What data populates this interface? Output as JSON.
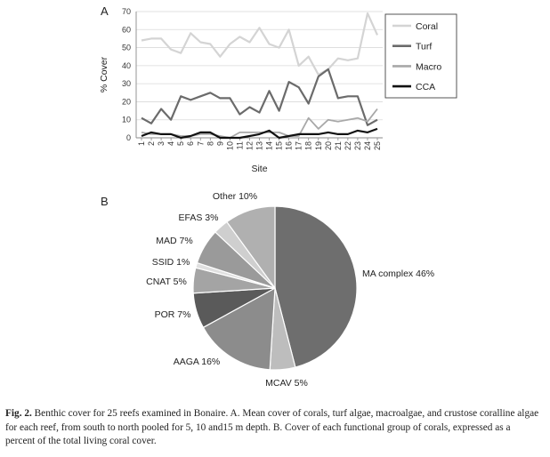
{
  "caption": {
    "label": "Fig. 2.",
    "text": "Benthic cover for 25 reefs examined in Bonaire. A. Mean cover of corals, turf algae, macroalgae, and crustose coralline algae for each reef, from south to north pooled for 5, 10 and15 m depth. B. Cover of each functional group of corals, expressed as a percent of the total living coral cover."
  },
  "chart_data": [
    {
      "panel": "A",
      "type": "line",
      "xlabel": "Site",
      "ylabel": "% Cover",
      "ylim": [
        0,
        70
      ],
      "yticks": [
        0,
        10,
        20,
        30,
        40,
        50,
        60,
        70
      ],
      "grid": true,
      "legend": "right",
      "x": [
        1,
        2,
        3,
        4,
        5,
        6,
        7,
        8,
        9,
        10,
        11,
        12,
        13,
        14,
        15,
        16,
        17,
        18,
        19,
        20,
        21,
        22,
        23,
        24,
        25
      ],
      "series": [
        {
          "name": "Coral",
          "color": "#d4d4d4",
          "values": [
            54,
            55,
            55,
            49,
            47,
            58,
            53,
            52,
            45,
            52,
            56,
            53,
            61,
            52,
            50,
            60,
            40,
            45,
            35,
            38,
            44,
            43,
            44,
            69,
            57
          ]
        },
        {
          "name": "Turf",
          "color": "#6b6b6b",
          "values": [
            11,
            8,
            16,
            10,
            23,
            21,
            23,
            25,
            22,
            22,
            13,
            17,
            14,
            26,
            15,
            31,
            28,
            19,
            34,
            38,
            22,
            23,
            23,
            7,
            10
          ]
        },
        {
          "name": "Macro",
          "color": "#a8a8a8",
          "values": [
            3,
            2,
            2,
            2,
            1,
            1,
            2,
            2,
            1,
            0,
            3,
            3,
            3,
            3,
            3,
            1,
            1,
            11,
            5,
            10,
            9,
            10,
            11,
            9,
            16
          ]
        },
        {
          "name": "CCA",
          "color": "#111111",
          "values": [
            1,
            3,
            2,
            2,
            0,
            1,
            3,
            3,
            0,
            0,
            0,
            1,
            2,
            4,
            0,
            1,
            2,
            2,
            2,
            3,
            2,
            2,
            4,
            3,
            5
          ]
        }
      ]
    },
    {
      "panel": "B",
      "type": "pie",
      "slices": [
        {
          "label": "MA complex 46%",
          "value": 46,
          "color": "#6e6e6e"
        },
        {
          "label": "MCAV 5%",
          "value": 5,
          "color": "#bdbdbd"
        },
        {
          "label": "AAGA 16%",
          "value": 16,
          "color": "#8c8c8c"
        },
        {
          "label": "POR 7%",
          "value": 7,
          "color": "#5a5a5a"
        },
        {
          "label": "CNAT 5%",
          "value": 5,
          "color": "#a4a4a4"
        },
        {
          "label": "SSID 1%",
          "value": 1,
          "color": "#e0e0e0"
        },
        {
          "label": "MAD 7%",
          "value": 7,
          "color": "#9a9a9a"
        },
        {
          "label": "EFAS 3%",
          "value": 3,
          "color": "#cfcfcf"
        },
        {
          "label": "Other 10%",
          "value": 10,
          "color": "#b0b0b0"
        }
      ]
    }
  ]
}
